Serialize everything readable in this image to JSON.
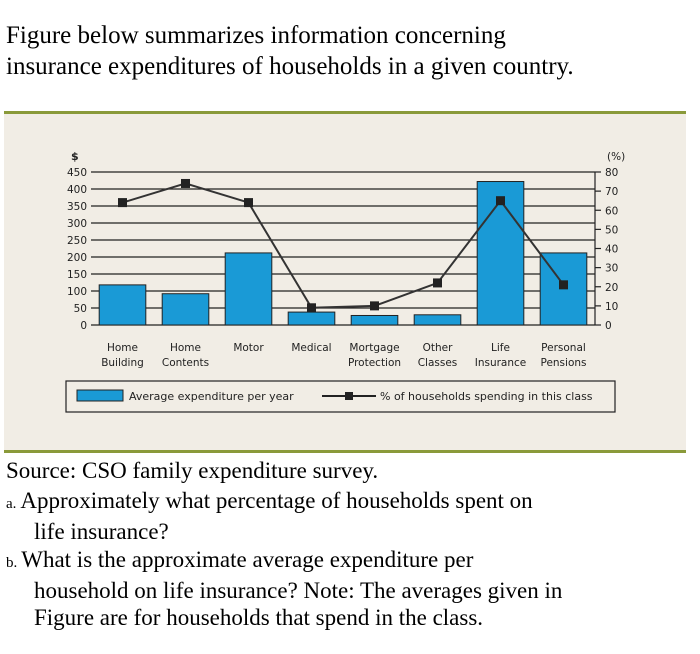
{
  "intro": [
    "Figure below summarizes information concerning",
    "insurance expenditures of households in a given country."
  ],
  "source": "Source: CSO family expenditure survey.",
  "questions": [
    {
      "label": "a.",
      "lines": [
        "Approximately what percentage of households spent on",
        "life insurance?"
      ]
    },
    {
      "label": "b.",
      "lines": [
        "What is the approximate average expenditure per",
        "household on life insurance? Note: The averages given in",
        "Figure are for households that spend in the class."
      ]
    }
  ],
  "chart_data": {
    "type": "bar+line",
    "categories": [
      [
        "Home",
        "Building"
      ],
      [
        "Home",
        "Contents"
      ],
      [
        "Motor",
        ""
      ],
      [
        "Medical",
        ""
      ],
      [
        "Mortgage",
        "Protection"
      ],
      [
        "Other",
        "Classes"
      ],
      [
        "Life",
        "Insurance"
      ],
      [
        "Personal",
        "Pensions"
      ]
    ],
    "series": [
      {
        "name": "Average expenditure per year",
        "type": "bar",
        "axis": "left",
        "values": [
          118,
          92,
          212,
          38,
          28,
          30,
          422,
          212
        ],
        "color": "#1a9ad6"
      },
      {
        "name": "% of households spending in this class",
        "type": "line",
        "axis": "right",
        "values": [
          64,
          74,
          64,
          9,
          10,
          22,
          65,
          21
        ],
        "color": "#333333"
      }
    ],
    "ylabel": "$",
    "ylim": [
      0,
      450
    ],
    "yticks": [
      0,
      50,
      100,
      150,
      200,
      250,
      300,
      350,
      400,
      450
    ],
    "y2label": "(%)",
    "y2lim": [
      0,
      80
    ],
    "y2ticks": [
      0,
      10,
      20,
      30,
      40,
      50,
      60,
      70,
      80
    ],
    "grid": true,
    "legend": "bottom",
    "background": "#f1ede5"
  }
}
